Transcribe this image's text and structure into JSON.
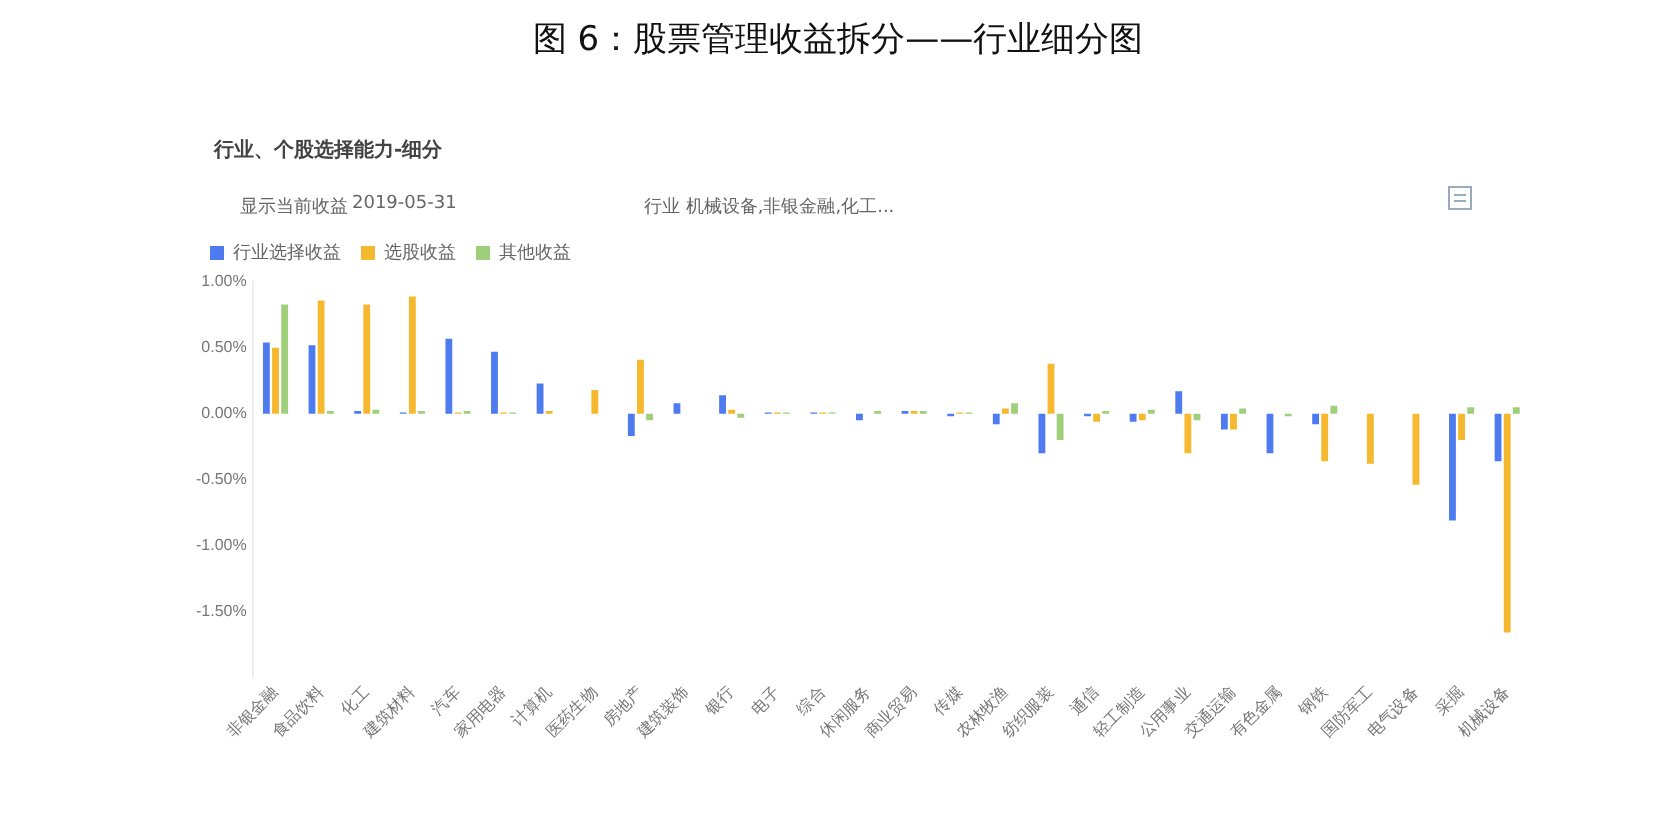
{
  "chart_data": {
    "type": "bar",
    "title": "图 6：股票管理收益拆分——行业细分图",
    "subtitle": "行业、个股选择能力-细分",
    "annotations": [
      "显示当前收益",
      "2019-05-31",
      "行业  机械设备,非银金融,化工..."
    ],
    "categories": [
      "非银金融",
      "食品饮料",
      "化工",
      "建筑材料",
      "汽车",
      "家用电器",
      "计算机",
      "医药生物",
      "房地产",
      "建筑装饰",
      "银行",
      "电子",
      "综合",
      "休闲服务",
      "商业贸易",
      "传媒",
      "农林牧渔",
      "纺织服装",
      "通信",
      "轻工制造",
      "公用事业",
      "交通运输",
      "有色金属",
      "钢铁",
      "国防军工",
      "电气设备",
      "采掘",
      "机械设备"
    ],
    "series": [
      {
        "name": "行业选择收益",
        "color": "#4e7cf0",
        "values": [
          0.54,
          0.52,
          0.02,
          0.01,
          0.57,
          0.47,
          0.23,
          0,
          -0.17,
          0.08,
          0.14,
          0.01,
          0.01,
          -0.05,
          0.02,
          -0.02,
          -0.08,
          -0.3,
          -0.02,
          -0.06,
          0.17,
          -0.12,
          -0.3,
          -0.08,
          0,
          0,
          -0.81,
          -0.36
        ]
      },
      {
        "name": "选股收益",
        "color": "#f5b82e",
        "values": [
          0.5,
          0.86,
          0.83,
          0.89,
          0.01,
          0.01,
          0.02,
          0.18,
          0.41,
          0,
          0.03,
          0.01,
          0.01,
          0,
          0.02,
          0.01,
          0.04,
          0.38,
          -0.06,
          -0.05,
          -0.3,
          -0.12,
          0,
          -0.36,
          -0.38,
          -0.54,
          -0.2,
          -1.66
        ]
      },
      {
        "name": "其他收益",
        "color": "#9fcf7a",
        "values": [
          0.83,
          0.02,
          0.03,
          0.02,
          0.02,
          0.01,
          0,
          0,
          -0.05,
          0,
          -0.03,
          0.01,
          0.01,
          0.02,
          0.02,
          0.01,
          0.08,
          -0.2,
          0.02,
          0.03,
          -0.05,
          0.04,
          -0.02,
          0.06,
          0,
          0,
          0.05,
          0.05
        ]
      }
    ],
    "ylim": [
      -2,
      1
    ],
    "yticks": [
      {
        "value": 1,
        "label": "1.00%"
      },
      {
        "value": 0.5,
        "label": "0.50%"
      },
      {
        "value": 0,
        "label": "0.00%"
      },
      {
        "value": -0.5,
        "label": "-0.50%"
      },
      {
        "value": -1,
        "label": "-1.00%"
      },
      {
        "value": -1.5,
        "label": "-1.50%"
      }
    ],
    "grid": false,
    "legend": "top left"
  }
}
